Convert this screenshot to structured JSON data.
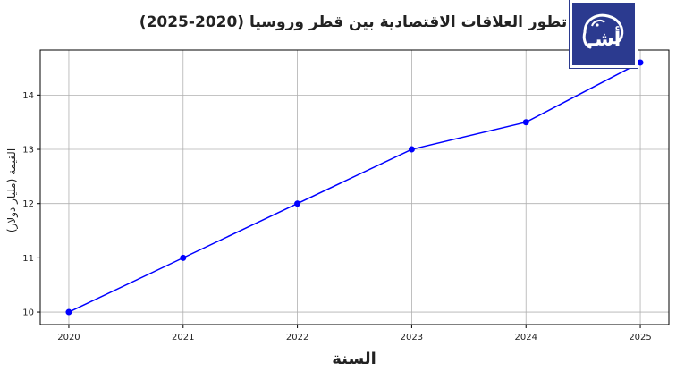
{
  "chart_data": {
    "type": "line",
    "title": "تطور العلاقات الاقتصادية بين قطر وروسيا (2020-2025)",
    "xlabel": "السنة",
    "ylabel": "القيمة (مليار دولار)",
    "x": [
      2020,
      2021,
      2022,
      2023,
      2024,
      2025
    ],
    "series": [
      {
        "values": [
          10,
          11,
          12,
          13,
          13.5,
          14.6
        ],
        "color": "#0000ff"
      }
    ],
    "xlim": [
      2019.75,
      2025.25
    ],
    "ylim": [
      9.77,
      14.83
    ],
    "yticks": [
      10,
      11,
      12,
      13,
      14
    ],
    "grid": true,
    "legend": "none"
  },
  "logo": {
    "text": "أشـ",
    "icon": "elephant-logo-icon",
    "bg_color": "#2b3a8f"
  }
}
